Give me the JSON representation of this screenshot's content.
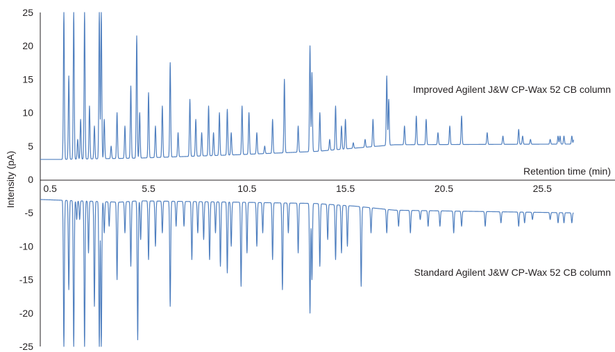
{
  "chart_data": {
    "type": "line",
    "title": "",
    "xlabel": "Retention time (min)",
    "ylabel": "Intensity (pA)",
    "xlim": [
      0,
      27.5
    ],
    "ylim": [
      -25,
      25
    ],
    "x_ticks": [
      "0.5",
      "5.5",
      "10.5",
      "15.5",
      "20.5",
      "25.5"
    ],
    "y_ticks": [
      "25",
      "20",
      "15",
      "10",
      "5",
      "0",
      "-5",
      "-10",
      "-15",
      "-20",
      "-25"
    ],
    "line_color": "#4f7fbf",
    "grid": false,
    "series": [
      {
        "name": "Improved Agilent J&W CP-Wax 52 CB column",
        "baseline": [
          [
            0,
            3.0
          ],
          [
            1,
            3.0
          ],
          [
            5,
            3.2
          ],
          [
            10,
            3.7
          ],
          [
            14,
            4.2
          ],
          [
            16,
            4.7
          ],
          [
            18,
            5.2
          ],
          [
            27,
            5.3
          ]
        ],
        "peaks": [
          [
            1.2,
            25
          ],
          [
            1.45,
            15.5
          ],
          [
            1.7,
            25
          ],
          [
            1.9,
            6
          ],
          [
            2.05,
            9
          ],
          [
            2.25,
            25
          ],
          [
            2.5,
            11
          ],
          [
            2.75,
            8
          ],
          [
            3.0,
            25
          ],
          [
            3.1,
            25
          ],
          [
            3.25,
            9
          ],
          [
            3.6,
            5
          ],
          [
            3.9,
            10
          ],
          [
            4.3,
            8
          ],
          [
            4.6,
            14
          ],
          [
            4.9,
            21.5
          ],
          [
            5.05,
            10
          ],
          [
            5.5,
            13
          ],
          [
            5.85,
            8
          ],
          [
            6.2,
            11
          ],
          [
            6.6,
            17.5
          ],
          [
            7.0,
            7
          ],
          [
            7.6,
            12
          ],
          [
            7.9,
            9
          ],
          [
            8.2,
            7
          ],
          [
            8.55,
            11
          ],
          [
            8.8,
            7
          ],
          [
            9.1,
            10
          ],
          [
            9.5,
            10.5
          ],
          [
            9.7,
            7
          ],
          [
            10.25,
            11
          ],
          [
            10.6,
            10
          ],
          [
            11.0,
            7
          ],
          [
            11.4,
            5
          ],
          [
            11.8,
            9
          ],
          [
            12.4,
            15
          ],
          [
            13.1,
            8
          ],
          [
            13.7,
            20
          ],
          [
            13.8,
            16
          ],
          [
            14.2,
            10
          ],
          [
            14.7,
            6
          ],
          [
            15.0,
            11
          ],
          [
            15.3,
            8
          ],
          [
            15.5,
            9
          ],
          [
            15.9,
            5.5
          ],
          [
            16.5,
            6
          ],
          [
            16.9,
            9
          ],
          [
            17.6,
            15.5
          ],
          [
            17.7,
            12
          ],
          [
            18.5,
            8
          ],
          [
            19.1,
            9.5
          ],
          [
            19.6,
            9
          ],
          [
            20.2,
            7
          ],
          [
            20.8,
            8
          ],
          [
            21.4,
            9.5
          ],
          [
            22.7,
            7
          ],
          [
            23.5,
            6.5
          ],
          [
            24.3,
            7.5
          ],
          [
            24.5,
            6.5
          ],
          [
            24.9,
            6
          ],
          [
            25.9,
            6
          ],
          [
            26.3,
            6.5
          ],
          [
            26.4,
            6.5
          ],
          [
            26.6,
            6.5
          ],
          [
            27.0,
            6.5
          ],
          [
            27.1,
            6
          ]
        ]
      },
      {
        "name": "Standard Agilent J&W CP-Wax 52 CB column",
        "baseline": [
          [
            0,
            -3.0
          ],
          [
            1,
            -3.1
          ],
          [
            3,
            -3.3
          ],
          [
            4,
            -3.4
          ],
          [
            5,
            -3.2
          ],
          [
            10,
            -3.4
          ],
          [
            14,
            -3.6
          ],
          [
            16,
            -4.0
          ],
          [
            18,
            -4.6
          ],
          [
            27,
            -5.0
          ]
        ],
        "peaks": [
          [
            1.2,
            -25
          ],
          [
            1.45,
            -16.5
          ],
          [
            1.7,
            -25
          ],
          [
            1.85,
            -6
          ],
          [
            2.0,
            -6
          ],
          [
            2.25,
            -25
          ],
          [
            2.45,
            -11
          ],
          [
            2.75,
            -19
          ],
          [
            3.0,
            -25
          ],
          [
            3.1,
            -25
          ],
          [
            3.25,
            -8
          ],
          [
            3.5,
            -7
          ],
          [
            3.9,
            -15
          ],
          [
            4.3,
            -8
          ],
          [
            4.6,
            -13
          ],
          [
            4.95,
            -24
          ],
          [
            5.1,
            -9
          ],
          [
            5.5,
            -12
          ],
          [
            5.85,
            -10
          ],
          [
            6.2,
            -8
          ],
          [
            6.6,
            -19
          ],
          [
            6.9,
            -7
          ],
          [
            7.3,
            -7
          ],
          [
            7.7,
            -12
          ],
          [
            8.0,
            -8
          ],
          [
            8.3,
            -9
          ],
          [
            8.6,
            -12
          ],
          [
            8.9,
            -8
          ],
          [
            9.15,
            -13
          ],
          [
            9.5,
            -14
          ],
          [
            9.7,
            -10
          ],
          [
            10.2,
            -16
          ],
          [
            10.5,
            -11
          ],
          [
            11.0,
            -10
          ],
          [
            11.3,
            -8
          ],
          [
            11.8,
            -12
          ],
          [
            12.3,
            -16.5
          ],
          [
            12.6,
            -8
          ],
          [
            13.1,
            -11
          ],
          [
            13.7,
            -20
          ],
          [
            13.8,
            -15
          ],
          [
            14.2,
            -13
          ],
          [
            14.6,
            -9
          ],
          [
            15.0,
            -12
          ],
          [
            15.3,
            -11
          ],
          [
            15.6,
            -10
          ],
          [
            16.3,
            -16
          ],
          [
            16.8,
            -8
          ],
          [
            17.6,
            -8
          ],
          [
            18.2,
            -7
          ],
          [
            18.8,
            -8
          ],
          [
            19.3,
            -6
          ],
          [
            19.7,
            -7
          ],
          [
            20.3,
            -7
          ],
          [
            21.0,
            -8
          ],
          [
            21.4,
            -7
          ],
          [
            22.6,
            -7
          ],
          [
            23.4,
            -6.5
          ],
          [
            24.3,
            -7
          ],
          [
            24.6,
            -6.5
          ],
          [
            25.0,
            -6
          ],
          [
            25.9,
            -6
          ],
          [
            26.3,
            -6.5
          ],
          [
            26.6,
            -6.5
          ],
          [
            27.0,
            -6.5
          ],
          [
            27.2,
            -6
          ]
        ]
      }
    ]
  }
}
